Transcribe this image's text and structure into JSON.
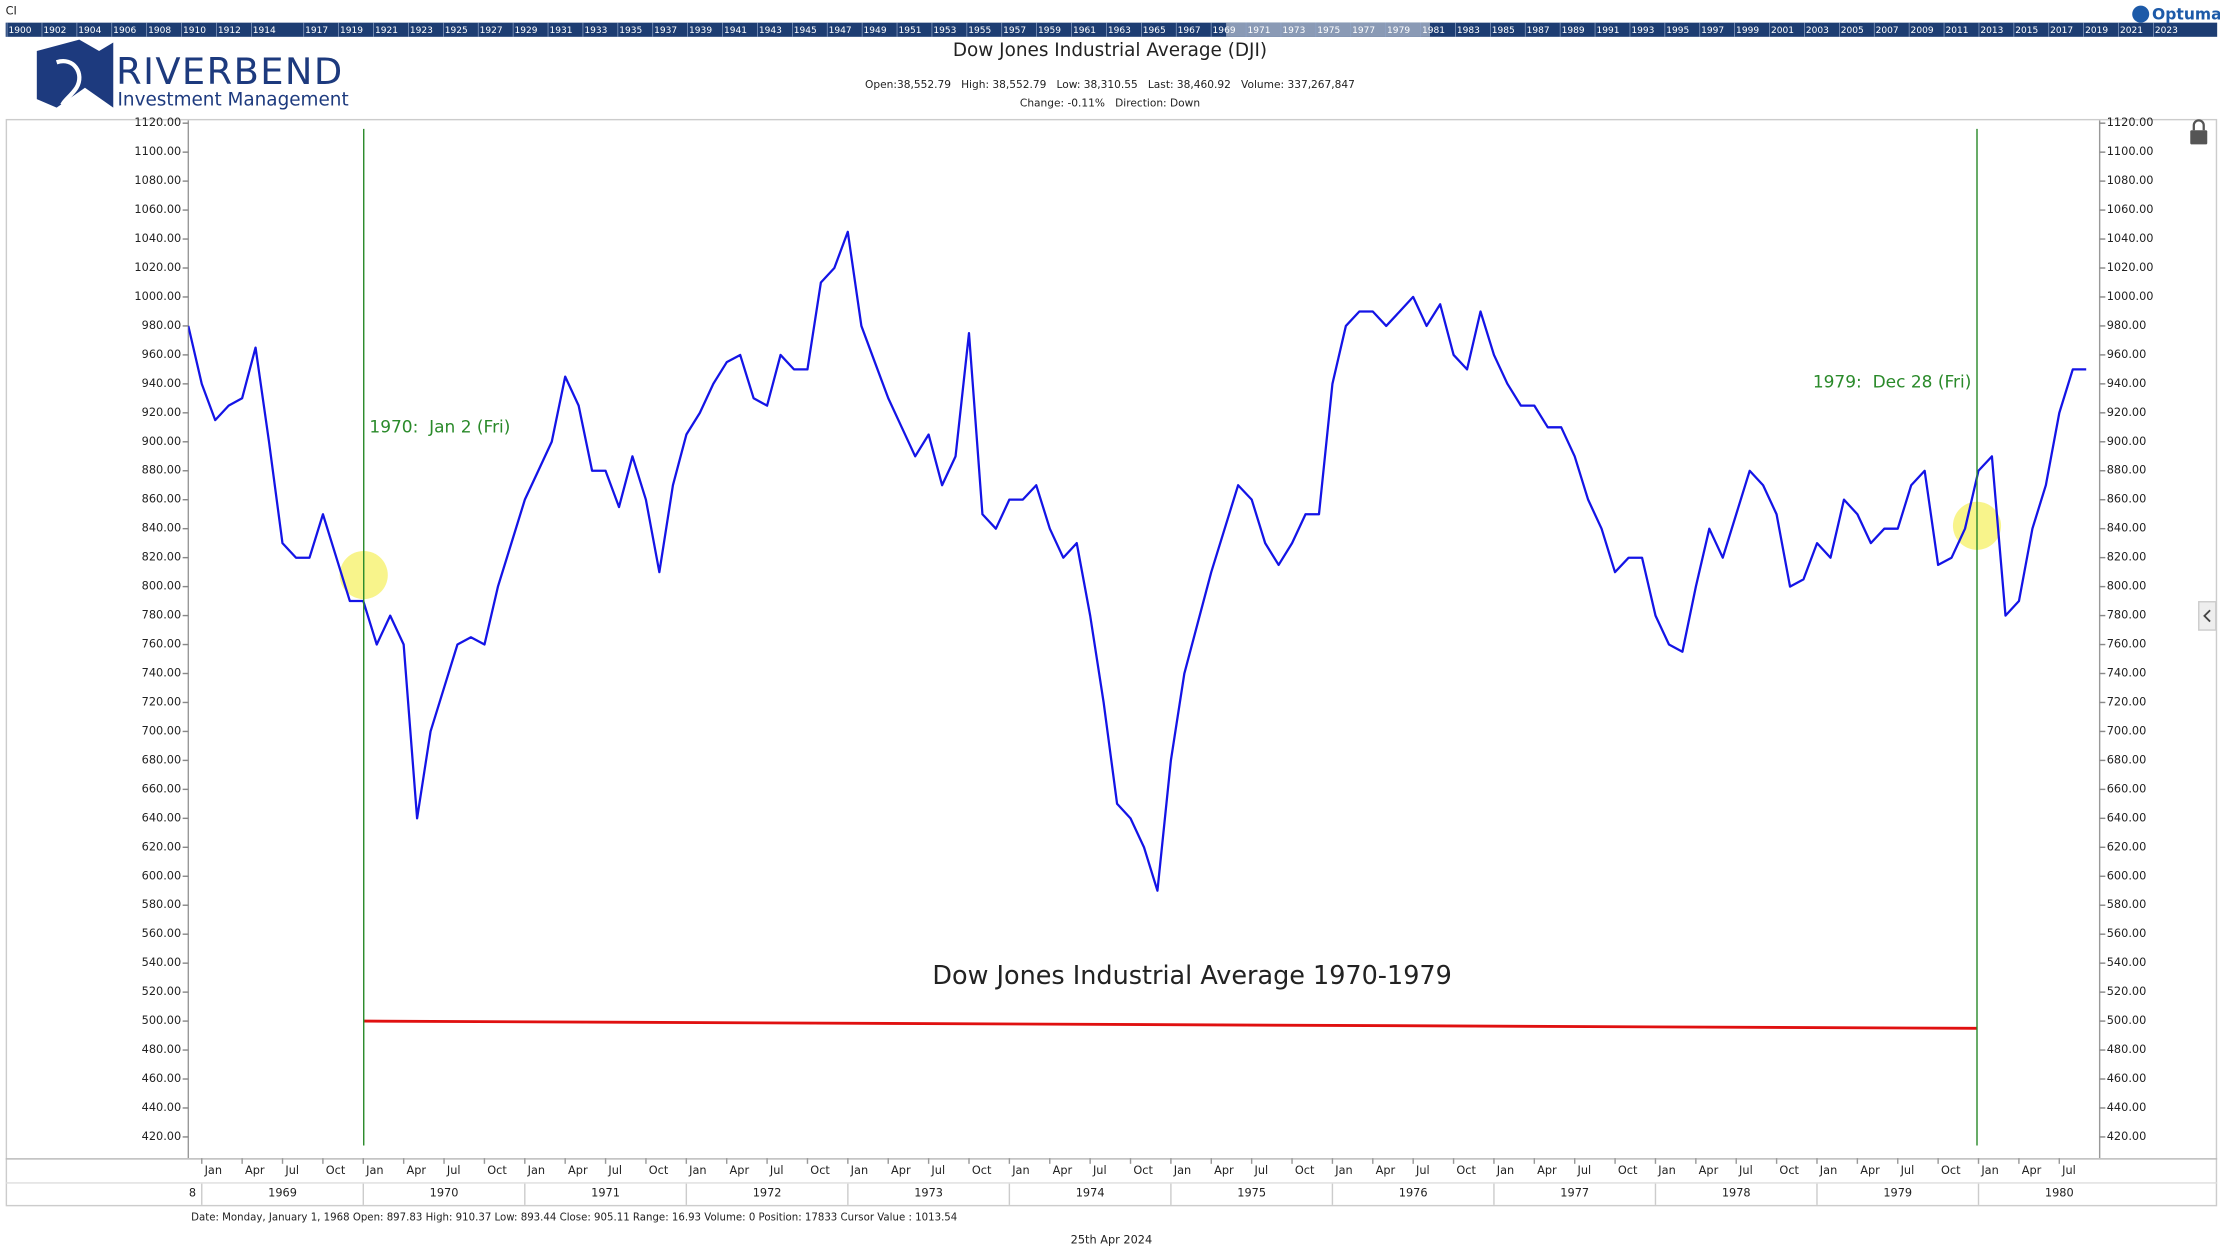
{
  "chart_data": {
    "type": "line",
    "corner_label": "CI",
    "vendor": "Optuma",
    "brand_name": "RIVERBEND",
    "brand_tagline": "Investment Management",
    "title": "Dow Jones Industrial Average (DJI)",
    "info": "Open:38,552.79   High: 38,552.79   Low: 38,310.55   Last: 38,460.92   Volume: 337,267,847",
    "change": "Change: -0.11%   Direction: Down",
    "annotation": "Dow Jones Industrial Average 1970-1979",
    "status": "Date: Monday, January 1, 1968 Open: 897.83 High: 910.37 Low: 893.44 Close: 905.11 Range: 16.93 Volume: 0 Position: 17833 Cursor Value : 1013.54",
    "footer_date": "25th Apr 2024",
    "timeline_years": [
      "1900",
      "1902",
      "1904",
      "1906",
      "1908",
      "1910",
      "1912",
      "1914",
      "1917",
      "1919",
      "1921",
      "1923",
      "1925",
      "1927",
      "1929",
      "1931",
      "1933",
      "1935",
      "1937",
      "1939",
      "1941",
      "1943",
      "1945",
      "1947",
      "1949",
      "1951",
      "1953",
      "1955",
      "1957",
      "1959",
      "1961",
      "1963",
      "1965",
      "1967",
      "1969",
      "1971",
      "1973",
      "1975",
      "1977",
      "1979",
      "1981",
      "1983",
      "1985",
      "1987",
      "1989",
      "1991",
      "1993",
      "1995",
      "1997",
      "1999",
      "2001",
      "2003",
      "2005",
      "2007",
      "2009",
      "2011",
      "2013",
      "2015",
      "2017",
      "2019",
      "2021",
      "2023"
    ],
    "xlim": [
      "1968-12-01",
      "1980-10-01"
    ],
    "ylim": [
      420,
      1120
    ],
    "yticks": [
      {
        "value": 420,
        "label": "420.00"
      },
      {
        "value": 440,
        "label": "440.00"
      },
      {
        "value": 460,
        "label": "460.00"
      },
      {
        "value": 480,
        "label": "480.00"
      },
      {
        "value": 500,
        "label": "500.00"
      },
      {
        "value": 520,
        "label": "520.00"
      },
      {
        "value": 540,
        "label": "540.00"
      },
      {
        "value": 560,
        "label": "560.00"
      },
      {
        "value": 580,
        "label": "580.00"
      },
      {
        "value": 600,
        "label": "600.00"
      },
      {
        "value": 620,
        "label": "620.00"
      },
      {
        "value": 640,
        "label": "640.00"
      },
      {
        "value": 660,
        "label": "660.00"
      },
      {
        "value": 680,
        "label": "680.00"
      },
      {
        "value": 700,
        "label": "700.00"
      },
      {
        "value": 720,
        "label": "720.00"
      },
      {
        "value": 740,
        "label": "740.00"
      },
      {
        "value": 760,
        "label": "760.00"
      },
      {
        "value": 780,
        "label": "780.00"
      },
      {
        "value": 800,
        "label": "800.00"
      },
      {
        "value": 820,
        "label": "820.00"
      },
      {
        "value": 840,
        "label": "840.00"
      },
      {
        "value": 860,
        "label": "860.00"
      },
      {
        "value": 880,
        "label": "880.00"
      },
      {
        "value": 900,
        "label": "900.00"
      },
      {
        "value": 920,
        "label": "920.00"
      },
      {
        "value": 940,
        "label": "940.00"
      },
      {
        "value": 960,
        "label": "960.00"
      },
      {
        "value": 980,
        "label": "980.00"
      },
      {
        "value": 1000,
        "label": "1000.00"
      },
      {
        "value": 1020,
        "label": "1020.00"
      },
      {
        "value": 1040,
        "label": "1040.00"
      },
      {
        "value": 1060,
        "label": "1060.00"
      },
      {
        "value": 1080,
        "label": "1080.00"
      },
      {
        "value": 1100,
        "label": "1100.00"
      },
      {
        "value": 1120,
        "label": "1120.00"
      }
    ],
    "xticks": [
      {
        "value": "1969-01",
        "label": "Jan"
      },
      {
        "value": "1969-04",
        "label": "Apr"
      },
      {
        "value": "1969-07",
        "label": "Jul"
      },
      {
        "value": "1969-10",
        "label": "Oct"
      },
      {
        "value": "1970-01",
        "label": "Jan"
      },
      {
        "value": "1970-04",
        "label": "Apr"
      },
      {
        "value": "1970-07",
        "label": "Jul"
      },
      {
        "value": "1970-10",
        "label": "Oct"
      },
      {
        "value": "1971-01",
        "label": "Jan"
      },
      {
        "value": "1971-04",
        "label": "Apr"
      },
      {
        "value": "1971-07",
        "label": "Jul"
      },
      {
        "value": "1971-10",
        "label": "Oct"
      },
      {
        "value": "1972-01",
        "label": "Jan"
      },
      {
        "value": "1972-04",
        "label": "Apr"
      },
      {
        "value": "1972-07",
        "label": "Jul"
      },
      {
        "value": "1972-10",
        "label": "Oct"
      },
      {
        "value": "1973-01",
        "label": "Jan"
      },
      {
        "value": "1973-04",
        "label": "Apr"
      },
      {
        "value": "1973-07",
        "label": "Jul"
      },
      {
        "value": "1973-10",
        "label": "Oct"
      },
      {
        "value": "1974-01",
        "label": "Jan"
      },
      {
        "value": "1974-04",
        "label": "Apr"
      },
      {
        "value": "1974-07",
        "label": "Jul"
      },
      {
        "value": "1974-10",
        "label": "Oct"
      },
      {
        "value": "1975-01",
        "label": "Jan"
      },
      {
        "value": "1975-04",
        "label": "Apr"
      },
      {
        "value": "1975-07",
        "label": "Jul"
      },
      {
        "value": "1975-10",
        "label": "Oct"
      },
      {
        "value": "1976-01",
        "label": "Jan"
      },
      {
        "value": "1976-04",
        "label": "Apr"
      },
      {
        "value": "1976-07",
        "label": "Jul"
      },
      {
        "value": "1976-10",
        "label": "Oct"
      },
      {
        "value": "1977-01",
        "label": "Jan"
      },
      {
        "value": "1977-04",
        "label": "Apr"
      },
      {
        "value": "1977-07",
        "label": "Jul"
      },
      {
        "value": "1977-10",
        "label": "Oct"
      },
      {
        "value": "1978-01",
        "label": "Jan"
      },
      {
        "value": "1978-04",
        "label": "Apr"
      },
      {
        "value": "1978-07",
        "label": "Jul"
      },
      {
        "value": "1978-10",
        "label": "Oct"
      },
      {
        "value": "1979-01",
        "label": "Jan"
      },
      {
        "value": "1979-04",
        "label": "Apr"
      },
      {
        "value": "1979-07",
        "label": "Jul"
      },
      {
        "value": "1979-10",
        "label": "Oct"
      },
      {
        "value": "1980-01",
        "label": "Jan"
      },
      {
        "value": "1980-04",
        "label": "Apr"
      },
      {
        "value": "1980-07",
        "label": "Jul"
      }
    ],
    "year_ticks": [
      {
        "value": "1968-01",
        "label": "8"
      },
      {
        "value": "1969-01",
        "label": "1969"
      },
      {
        "value": "1970-01",
        "label": "1970"
      },
      {
        "value": "1971-01",
        "label": "1971"
      },
      {
        "value": "1972-01",
        "label": "1972"
      },
      {
        "value": "1973-01",
        "label": "1973"
      },
      {
        "value": "1974-01",
        "label": "1974"
      },
      {
        "value": "1975-01",
        "label": "1975"
      },
      {
        "value": "1976-01",
        "label": "1976"
      },
      {
        "value": "1977-01",
        "label": "1977"
      },
      {
        "value": "1978-01",
        "label": "1978"
      },
      {
        "value": "1979-01",
        "label": "1979"
      },
      {
        "value": "1980-01",
        "label": "1980"
      }
    ],
    "color": "#1414e6",
    "x": [
      "1968-12",
      "1969-01",
      "1969-02",
      "1969-03",
      "1969-04",
      "1969-05",
      "1969-06",
      "1969-07",
      "1969-08",
      "1969-09",
      "1969-10",
      "1969-11",
      "1969-12",
      "1970-01",
      "1970-02",
      "1970-03",
      "1970-04",
      "1970-05",
      "1970-06",
      "1970-07",
      "1970-08",
      "1970-09",
      "1970-10",
      "1970-11",
      "1970-12",
      "1971-01",
      "1971-02",
      "1971-03",
      "1971-04",
      "1971-05",
      "1971-06",
      "1971-07",
      "1971-08",
      "1971-09",
      "1971-10",
      "1971-11",
      "1971-12",
      "1972-01",
      "1972-02",
      "1972-03",
      "1972-04",
      "1972-05",
      "1972-06",
      "1972-07",
      "1972-08",
      "1972-09",
      "1972-10",
      "1972-11",
      "1972-12",
      "1973-01",
      "1973-02",
      "1973-03",
      "1973-04",
      "1973-05",
      "1973-06",
      "1973-07",
      "1973-08",
      "1973-09",
      "1973-10",
      "1973-11",
      "1973-12",
      "1974-01",
      "1974-02",
      "1974-03",
      "1974-04",
      "1974-05",
      "1974-06",
      "1974-07",
      "1974-08",
      "1974-09",
      "1974-10",
      "1974-11",
      "1974-12",
      "1975-01",
      "1975-02",
      "1975-03",
      "1975-04",
      "1975-05",
      "1975-06",
      "1975-07",
      "1975-08",
      "1975-09",
      "1975-10",
      "1975-11",
      "1975-12",
      "1976-01",
      "1976-02",
      "1976-03",
      "1976-04",
      "1976-05",
      "1976-06",
      "1976-07",
      "1976-08",
      "1976-09",
      "1976-10",
      "1976-11",
      "1976-12",
      "1977-01",
      "1977-02",
      "1977-03",
      "1977-04",
      "1977-05",
      "1977-06",
      "1977-07",
      "1977-08",
      "1977-09",
      "1977-10",
      "1977-11",
      "1977-12",
      "1978-01",
      "1978-02",
      "1978-03",
      "1978-04",
      "1978-05",
      "1978-06",
      "1978-07",
      "1978-08",
      "1978-09",
      "1978-10",
      "1978-11",
      "1978-12",
      "1979-01",
      "1979-02",
      "1979-03",
      "1979-04",
      "1979-05",
      "1979-06",
      "1979-07",
      "1979-08",
      "1979-09",
      "1979-10",
      "1979-11",
      "1979-12",
      "1980-01",
      "1980-02",
      "1980-03",
      "1980-04",
      "1980-05",
      "1980-06",
      "1980-07",
      "1980-08",
      "1980-09"
    ],
    "values": [
      980,
      940,
      915,
      925,
      930,
      965,
      900,
      830,
      820,
      820,
      850,
      820,
      790,
      790,
      760,
      780,
      760,
      640,
      700,
      730,
      760,
      765,
      760,
      800,
      830,
      860,
      880,
      900,
      945,
      925,
      880,
      880,
      855,
      890,
      860,
      810,
      870,
      905,
      920,
      940,
      955,
      960,
      930,
      925,
      960,
      950,
      950,
      1010,
      1020,
      1045,
      980,
      955,
      930,
      910,
      890,
      905,
      870,
      890,
      975,
      850,
      840,
      860,
      860,
      870,
      840,
      820,
      830,
      780,
      720,
      650,
      640,
      620,
      590,
      680,
      740,
      775,
      810,
      840,
      870,
      860,
      830,
      815,
      830,
      850,
      850,
      940,
      980,
      990,
      990,
      980,
      990,
      1000,
      980,
      995,
      960,
      950,
      990,
      960,
      940,
      925,
      925,
      910,
      910,
      890,
      860,
      840,
      810,
      820,
      820,
      780,
      760,
      755,
      800,
      840,
      820,
      850,
      880,
      870,
      850,
      800,
      805,
      830,
      820,
      860,
      850,
      830,
      840,
      840,
      870,
      880,
      815,
      820,
      840,
      880,
      890,
      780,
      790,
      840,
      870,
      920,
      950,
      950
    ],
    "trend_line": {
      "x": [
        "1970-01-02",
        "1979-12-28"
      ],
      "values": [
        500,
        495
      ],
      "color": "#e01010"
    },
    "markers": [
      {
        "x": "1970-01-02",
        "label": "1970:  Jan 2 (Fri)",
        "highlight": 808
      },
      {
        "x": "1979-12-28",
        "label": "1979:  Dec 28 (Fri)",
        "highlight": 842
      }
    ],
    "marker_color": "#2a8a2a"
  }
}
